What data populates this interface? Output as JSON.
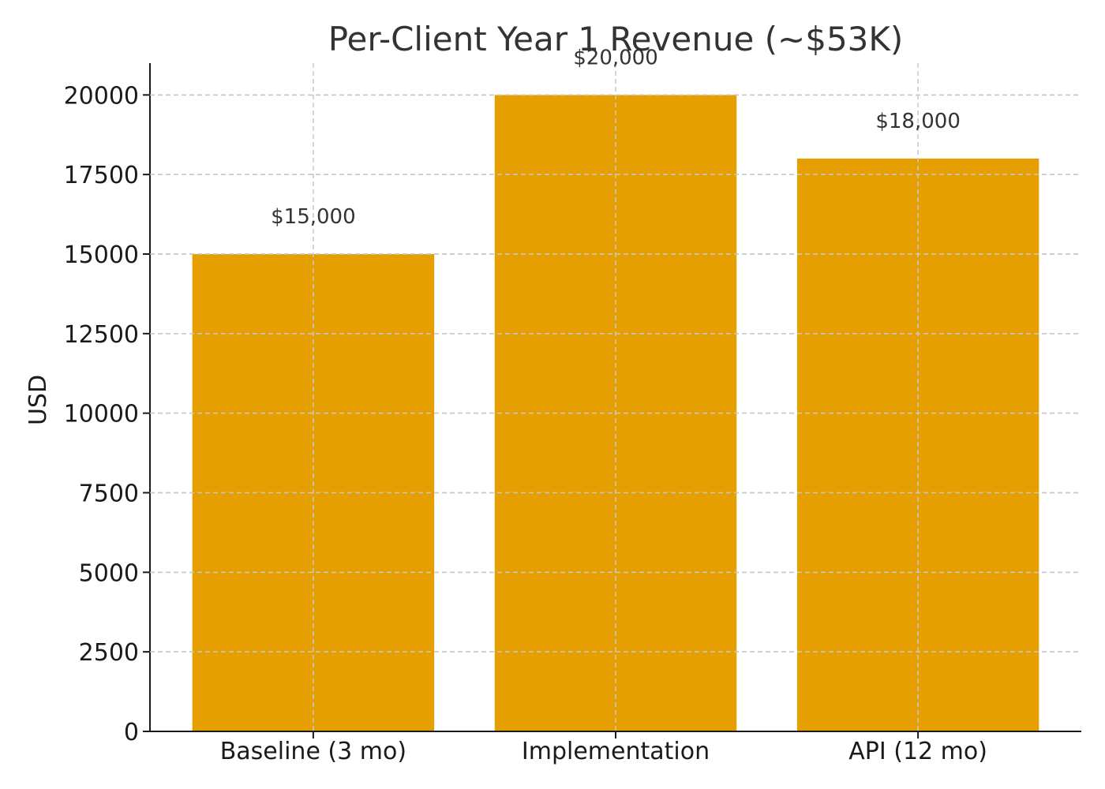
{
  "chart_data": {
    "type": "bar",
    "title": "Per-Client Year 1 Revenue (~$53K)",
    "xlabel": "",
    "ylabel": "USD",
    "categories": [
      "Baseline (3 mo)",
      "Implementation",
      "API (12 mo)"
    ],
    "values": [
      15000,
      20000,
      18000
    ],
    "data_labels": [
      "$15,000",
      "$20,000",
      "$18,000"
    ],
    "ylim": [
      0,
      21000
    ],
    "yticks": [
      0,
      2500,
      5000,
      7500,
      10000,
      12500,
      15000,
      17500,
      20000
    ],
    "grid": true,
    "bar_color": "#E69F00"
  }
}
